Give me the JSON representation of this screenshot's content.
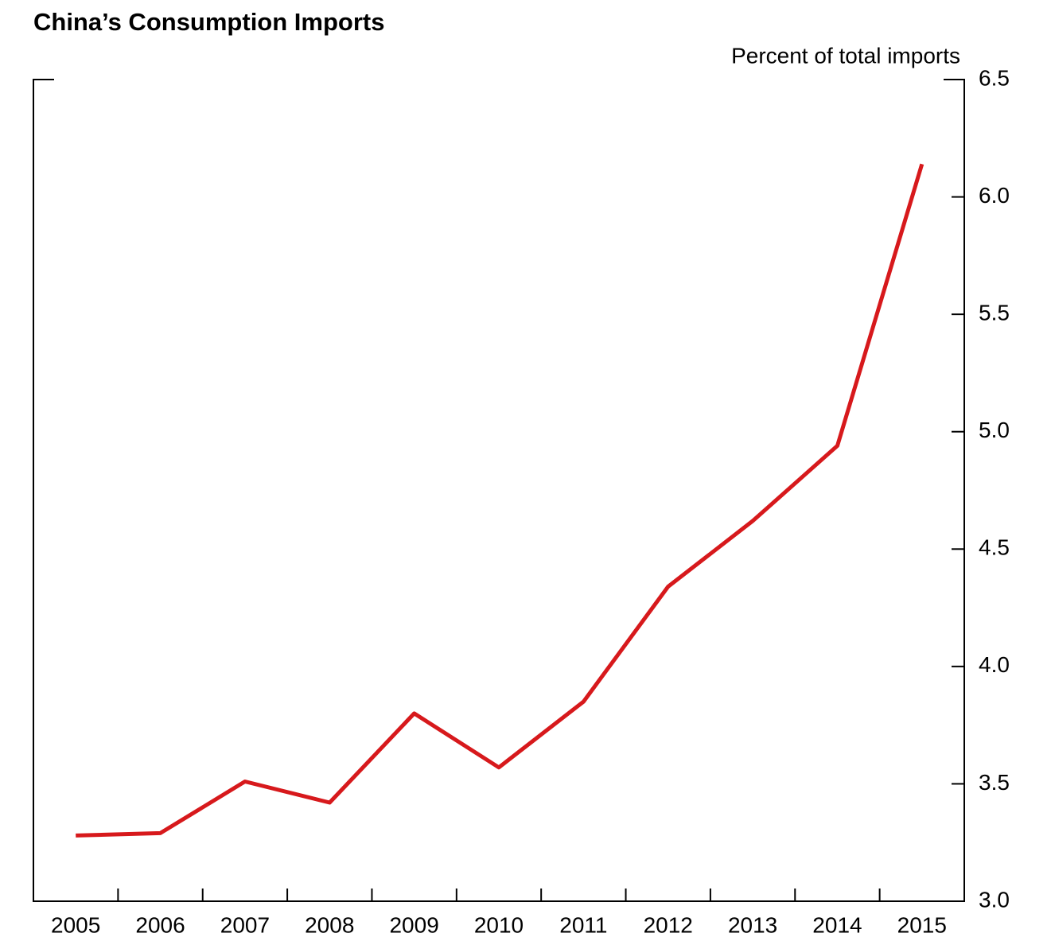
{
  "chart_data": {
    "type": "line",
    "title": "China’s Consumption Imports",
    "y_axis_label": "Percent of total imports",
    "categories": [
      "2005",
      "2006",
      "2007",
      "2008",
      "2009",
      "2010",
      "2011",
      "2012",
      "2013",
      "2014",
      "2015"
    ],
    "series": [
      {
        "name": "Consumption imports",
        "color": "#d7191c",
        "values": [
          3.28,
          3.29,
          3.51,
          3.42,
          3.8,
          3.57,
          3.85,
          4.34,
          4.62,
          4.94,
          6.14
        ]
      }
    ],
    "ylim": [
      3,
      6.5
    ],
    "yticks": [
      {
        "value": 3,
        "label": "3.0"
      },
      3.5,
      {
        "value": 4,
        "label": "4.0"
      },
      4.5,
      {
        "value": 5,
        "label": "5.0"
      },
      5.5,
      {
        "value": 6,
        "label": "6.0"
      },
      6.5
    ],
    "y_axis_side": "right"
  }
}
